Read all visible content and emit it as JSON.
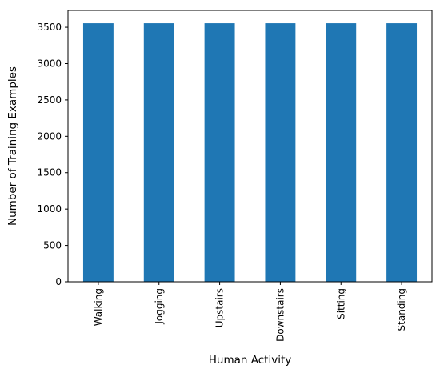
{
  "chart_data": {
    "type": "bar",
    "title": "",
    "xlabel": "Human Activity",
    "ylabel": "Number of Training Examples",
    "categories": [
      "Walking",
      "Jogging",
      "Upstairs",
      "Downstairs",
      "Sitting",
      "Standing"
    ],
    "values": [
      3555,
      3555,
      3555,
      3555,
      3555,
      3555
    ],
    "ylim": [
      0,
      3732
    ],
    "yticks": [
      0,
      500,
      1000,
      1500,
      2000,
      2500,
      3000,
      3500
    ],
    "ytick_labels": [
      "0",
      "500",
      "1000",
      "1500",
      "2000",
      "2500",
      "3000",
      "3500"
    ],
    "grid": false,
    "legend": "none",
    "bar_color": "#1f77b4"
  }
}
